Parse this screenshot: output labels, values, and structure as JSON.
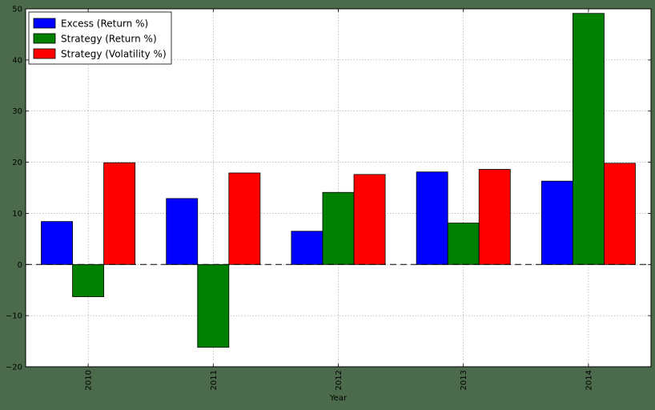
{
  "chart_data": {
    "type": "bar",
    "title": "",
    "xlabel": "Year",
    "ylabel": "",
    "categories": [
      "2010",
      "2011",
      "2012",
      "2013",
      "2014"
    ],
    "series": [
      {
        "name": "Excess (Return %)",
        "color": "#0000ff",
        "values": [
          8.4,
          12.9,
          6.5,
          18.1,
          16.3
        ]
      },
      {
        "name": "Strategy (Return %)",
        "color": "#008000",
        "values": [
          -6.3,
          -16.2,
          14.1,
          8.1,
          49.1
        ]
      },
      {
        "name": "Strategy (Volatility %)",
        "color": "#ff0000",
        "values": [
          19.9,
          17.9,
          17.6,
          18.6,
          19.8
        ]
      }
    ],
    "ylim": [
      -20,
      50
    ],
    "yticks": [
      -20,
      -10,
      0,
      10,
      20,
      30,
      40,
      50
    ],
    "grid": true,
    "legend_position": "top-left",
    "zero_line": "dashed"
  }
}
